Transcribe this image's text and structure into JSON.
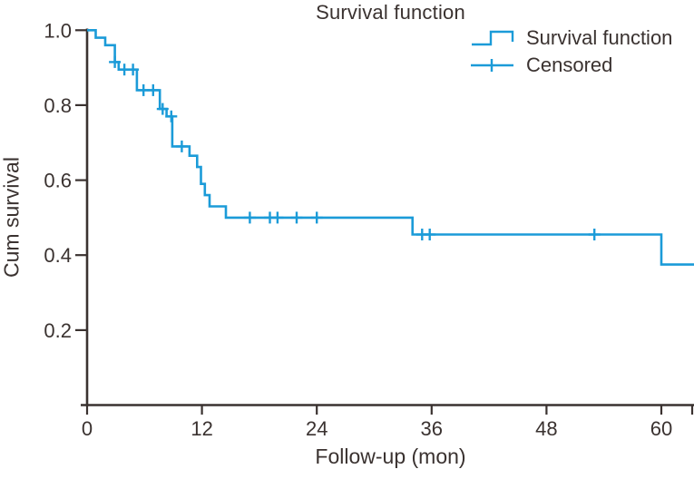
{
  "figure": {
    "legend": {
      "items": [
        {
          "label": "Survival function",
          "symbol": "step-line"
        },
        {
          "label": "Censored",
          "symbol": "plus-tick"
        }
      ]
    }
  },
  "chart_data": {
    "type": "line",
    "subtype": "kaplan_meier_step",
    "title": "Survival function",
    "xlabel": "Follow-up (mon)",
    "ylabel": "Cum survival",
    "xlim": [
      0,
      63.5
    ],
    "ylim": [
      0,
      1.0
    ],
    "grid": false,
    "legend_position": "top-right",
    "xticks": [
      {
        "v": 0,
        "label": "0"
      },
      {
        "v": 12,
        "label": "12"
      },
      {
        "v": 24,
        "label": "24"
      },
      {
        "v": 36,
        "label": "36"
      },
      {
        "v": 48,
        "label": "48"
      },
      {
        "v": 60,
        "label": "60"
      }
    ],
    "yticks": [
      {
        "v": 0.2,
        "label": "0.2"
      },
      {
        "v": 0.4,
        "label": "0.4"
      },
      {
        "v": 0.6,
        "label": "0.6"
      },
      {
        "v": 0.8,
        "label": "0.8"
      },
      {
        "v": 1.0,
        "label": "1.0"
      }
    ],
    "colors": {
      "line": "#1b9bd8",
      "axis": "#3a3230",
      "text": "#3a3230"
    },
    "series": [
      {
        "name": "Survival function",
        "draw": "step-post",
        "points": [
          [
            0,
            1.0
          ],
          [
            0.9,
            0.98
          ],
          [
            1.9,
            0.96
          ],
          [
            2.9,
            0.915
          ],
          [
            3.3,
            0.895
          ],
          [
            5.2,
            0.84
          ],
          [
            7.6,
            0.79
          ],
          [
            8.3,
            0.77
          ],
          [
            8.9,
            0.69
          ],
          [
            10.7,
            0.665
          ],
          [
            11.5,
            0.635
          ],
          [
            11.9,
            0.59
          ],
          [
            12.3,
            0.56
          ],
          [
            12.8,
            0.53
          ],
          [
            14.5,
            0.5
          ],
          [
            34.0,
            0.455
          ],
          [
            60.0,
            0.375
          ]
        ],
        "end_x": 63.5
      }
    ],
    "censored_points": [
      [
        2.9,
        0.915
      ],
      [
        3.9,
        0.895
      ],
      [
        4.8,
        0.895
      ],
      [
        5.9,
        0.84
      ],
      [
        6.9,
        0.84
      ],
      [
        7.9,
        0.79
      ],
      [
        8.8,
        0.77
      ],
      [
        9.9,
        0.69
      ],
      [
        17.0,
        0.5
      ],
      [
        19.1,
        0.5
      ],
      [
        19.9,
        0.5
      ],
      [
        21.9,
        0.5
      ],
      [
        24.0,
        0.5
      ],
      [
        35.0,
        0.455
      ],
      [
        35.8,
        0.455
      ],
      [
        53.0,
        0.455
      ]
    ]
  }
}
